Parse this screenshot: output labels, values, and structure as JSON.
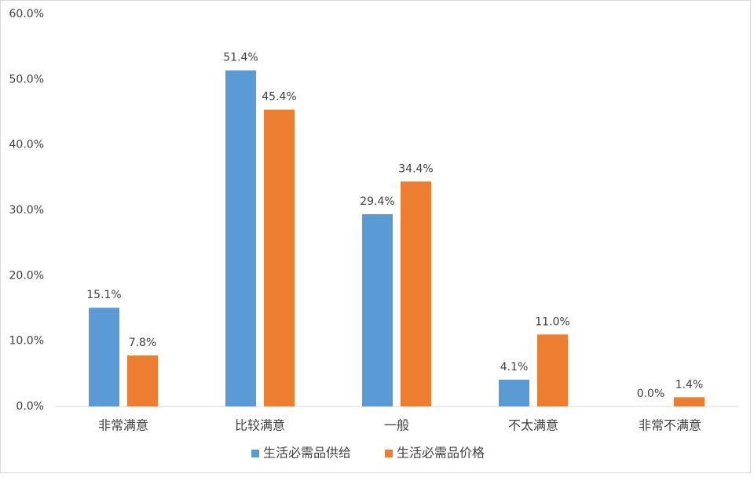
{
  "chart_data": {
    "type": "bar",
    "categories": [
      "非常满意",
      "比较满意",
      "一般",
      "不太满意",
      "非常不满意"
    ],
    "series": [
      {
        "name": "生活必需品供给",
        "color": "#5b9bd5",
        "values": [
          15.1,
          51.4,
          29.4,
          4.1,
          0.0
        ],
        "value_labels": [
          "15.1%",
          "51.4%",
          "29.4%",
          "4.1%",
          "0.0%"
        ]
      },
      {
        "name": "生活必需品价格",
        "color": "#ed7d31",
        "values": [
          7.8,
          45.4,
          34.4,
          11.0,
          1.4
        ],
        "value_labels": [
          "7.8%",
          "45.4%",
          "34.4%",
          "11.0%",
          "1.4%"
        ]
      }
    ],
    "ylim": [
      0,
      60
    ],
    "yticks": [
      {
        "value": 0,
        "label": "0.0%"
      },
      {
        "value": 10,
        "label": "10.0%"
      },
      {
        "value": 20,
        "label": "20.0%"
      },
      {
        "value": 30,
        "label": "30.0%"
      },
      {
        "value": 40,
        "label": "40.0%"
      },
      {
        "value": 50,
        "label": "50.0%"
      },
      {
        "value": 60,
        "label": "60.0%"
      }
    ],
    "grid": false,
    "legend": "bottom"
  }
}
